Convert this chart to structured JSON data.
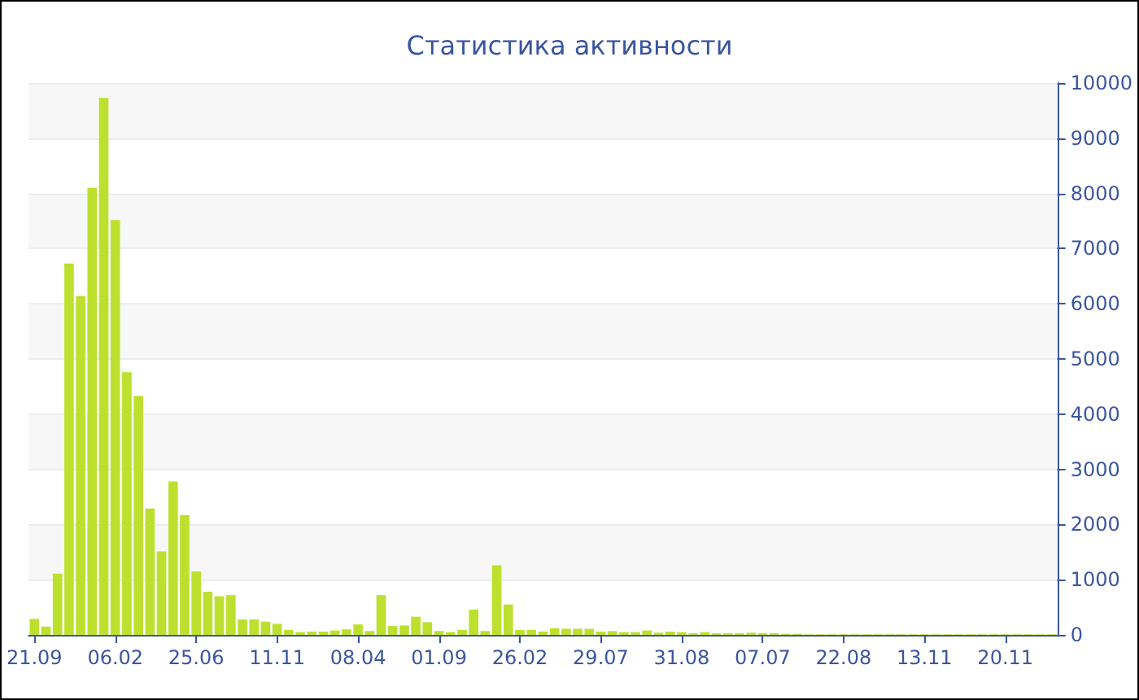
{
  "chart_data": {
    "type": "bar",
    "title": "Статистика активности",
    "categories": [
      "21.09",
      null,
      null,
      null,
      null,
      null,
      null,
      "06.02",
      null,
      null,
      null,
      null,
      null,
      null,
      "25.06",
      null,
      null,
      null,
      null,
      null,
      null,
      "11.11",
      null,
      null,
      null,
      null,
      null,
      null,
      "08.04",
      null,
      null,
      null,
      null,
      null,
      null,
      "01.09",
      null,
      null,
      null,
      null,
      null,
      null,
      "26.02",
      null,
      null,
      null,
      null,
      null,
      null,
      "29.07",
      null,
      null,
      null,
      null,
      null,
      null,
      "31.08",
      null,
      null,
      null,
      null,
      null,
      null,
      "07.07",
      null,
      null,
      null,
      null,
      null,
      null,
      "22.08",
      null,
      null,
      null,
      null,
      null,
      null,
      "13.11",
      null,
      null,
      null,
      null,
      null,
      null,
      "20.11",
      null,
      null,
      null,
      null
    ],
    "values": [
      290,
      150,
      1110,
      6730,
      6140,
      8100,
      9730,
      7520,
      4760,
      4330,
      2290,
      1510,
      2780,
      2170,
      1150,
      780,
      700,
      720,
      280,
      280,
      240,
      200,
      90,
      50,
      60,
      60,
      80,
      100,
      190,
      70,
      720,
      160,
      170,
      330,
      230,
      70,
      50,
      90,
      460,
      70,
      1260,
      550,
      90,
      90,
      60,
      120,
      110,
      110,
      110,
      60,
      70,
      50,
      50,
      80,
      40,
      60,
      50,
      30,
      50,
      30,
      30,
      30,
      40,
      30,
      30,
      20,
      20,
      10,
      10,
      10,
      10,
      10,
      10,
      10,
      10,
      10,
      10,
      10,
      10,
      10,
      10,
      10,
      10,
      10,
      10,
      10,
      10,
      10,
      10
    ],
    "color": "#bde02e",
    "ylim": [
      0,
      10000
    ],
    "yticks": [
      0,
      1000,
      2000,
      3000,
      4000,
      5000,
      6000,
      7000,
      8000,
      9000,
      10000
    ],
    "grid": "y"
  }
}
